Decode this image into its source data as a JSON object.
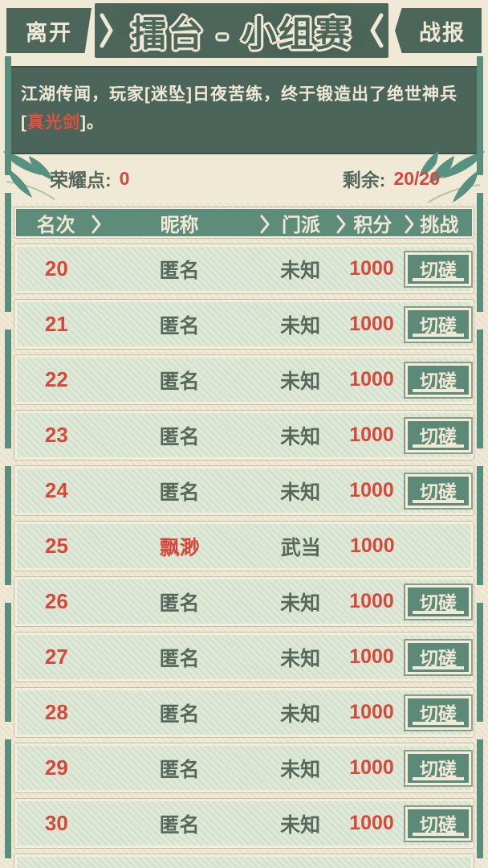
{
  "header": {
    "leave_label": "离开",
    "title": "擂台 - 小组赛",
    "report_label": "战报"
  },
  "notice": {
    "text_before": "江湖传闻，玩家[迷坠]日夜苦练，终于锻造出了绝世神兵[",
    "highlight": "真光剑",
    "text_after": "]。"
  },
  "stats": {
    "honor_label": "荣耀点:",
    "honor_value": "0",
    "remaining_label": "剩余:",
    "remaining_value": "20/20"
  },
  "table": {
    "columns": [
      "名次",
      "昵称",
      "门派",
      "积分",
      "挑战"
    ],
    "challenge_label": "切磋",
    "rows": [
      {
        "rank": "20",
        "name": "匿名",
        "sect": "未知",
        "score": "1000",
        "self": false,
        "challengeable": true
      },
      {
        "rank": "21",
        "name": "匿名",
        "sect": "未知",
        "score": "1000",
        "self": false,
        "challengeable": true
      },
      {
        "rank": "22",
        "name": "匿名",
        "sect": "未知",
        "score": "1000",
        "self": false,
        "challengeable": true
      },
      {
        "rank": "23",
        "name": "匿名",
        "sect": "未知",
        "score": "1000",
        "self": false,
        "challengeable": true
      },
      {
        "rank": "24",
        "name": "匿名",
        "sect": "未知",
        "score": "1000",
        "self": false,
        "challengeable": true
      },
      {
        "rank": "25",
        "name": "飘渺",
        "sect": "武当",
        "score": "1000",
        "self": true,
        "challengeable": false
      },
      {
        "rank": "26",
        "name": "匿名",
        "sect": "未知",
        "score": "1000",
        "self": false,
        "challengeable": true
      },
      {
        "rank": "27",
        "name": "匿名",
        "sect": "未知",
        "score": "1000",
        "self": false,
        "challengeable": true
      },
      {
        "rank": "28",
        "name": "匿名",
        "sect": "未知",
        "score": "1000",
        "self": false,
        "challengeable": true
      },
      {
        "rank": "29",
        "name": "匿名",
        "sect": "未知",
        "score": "1000",
        "self": false,
        "challengeable": true
      },
      {
        "rank": "30",
        "name": "匿名",
        "sect": "未知",
        "score": "1000",
        "self": false,
        "challengeable": true
      }
    ]
  },
  "colors": {
    "accent_red": "#d6483c",
    "dark_green": "#4c665a",
    "mid_green": "#5e8c7a",
    "cream": "#f0e9d6"
  }
}
